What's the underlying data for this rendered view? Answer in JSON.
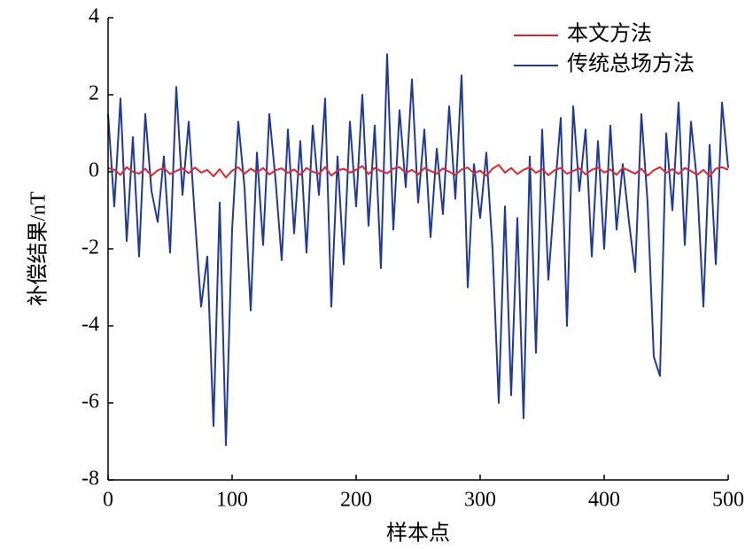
{
  "chart_data": {
    "type": "line",
    "xlabel": "样本点",
    "ylabel": "补偿结果/nT",
    "x": [
      0,
      5,
      10,
      15,
      20,
      25,
      30,
      35,
      40,
      45,
      50,
      55,
      60,
      65,
      70,
      75,
      80,
      85,
      90,
      95,
      100,
      105,
      110,
      115,
      120,
      125,
      130,
      135,
      140,
      145,
      150,
      155,
      160,
      165,
      170,
      175,
      180,
      185,
      190,
      195,
      200,
      205,
      210,
      215,
      220,
      225,
      230,
      235,
      240,
      245,
      250,
      255,
      260,
      265,
      270,
      275,
      280,
      285,
      290,
      295,
      300,
      305,
      310,
      315,
      320,
      325,
      330,
      335,
      340,
      345,
      350,
      355,
      360,
      365,
      370,
      375,
      380,
      385,
      390,
      395,
      400,
      405,
      410,
      415,
      420,
      425,
      430,
      435,
      440,
      445,
      450,
      455,
      460,
      465,
      470,
      475,
      480,
      485,
      490,
      495,
      500
    ],
    "series": [
      {
        "name": "本文方法",
        "color": "#e0262b",
        "values": [
          0.1,
          0.05,
          -0.08,
          0.12,
          0.0,
          -0.05,
          0.08,
          -0.1,
          0.04,
          0.1,
          -0.06,
          0.02,
          0.09,
          -0.04,
          0.11,
          -0.02,
          0.05,
          -0.12,
          0.07,
          -0.15,
          0.03,
          0.12,
          -0.05,
          0.08,
          -0.02,
          0.1,
          -0.07,
          0.04,
          0.09,
          -0.03,
          0.06,
          -0.08,
          0.1,
          0.0,
          -0.05,
          0.12,
          -0.1,
          0.03,
          0.08,
          -0.02,
          0.05,
          0.15,
          -0.06,
          0.1,
          0.02,
          -0.04,
          0.08,
          0.12,
          -0.03,
          0.05,
          -0.07,
          0.1,
          0.02,
          -0.05,
          0.09,
          0.0,
          -0.08,
          0.06,
          0.11,
          -0.04,
          0.03,
          -0.1,
          0.08,
          0.18,
          -0.02,
          0.1,
          -0.06,
          0.05,
          0.12,
          -0.03,
          0.07,
          -0.09,
          0.04,
          0.1,
          -0.05,
          0.02,
          0.09,
          -0.07,
          0.05,
          0.11,
          -0.02,
          0.06,
          -0.08,
          0.1,
          0.03,
          -0.05,
          0.08,
          -0.1,
          0.04,
          0.12,
          -0.03,
          0.07,
          -0.06,
          0.1,
          0.02,
          -0.08,
          0.05,
          -0.12,
          0.08,
          0.12,
          0.05
        ]
      },
      {
        "name": "传统总场方法",
        "color": "#1f3a9a",
        "values": [
          1.5,
          -0.9,
          1.9,
          -1.8,
          0.9,
          -2.2,
          1.5,
          -0.5,
          -1.3,
          0.4,
          -2.1,
          2.2,
          -0.6,
          1.3,
          -1.2,
          -3.5,
          -2.2,
          -6.6,
          -0.8,
          -7.1,
          -1.5,
          1.3,
          -0.4,
          -3.6,
          0.5,
          -1.9,
          1.5,
          -0.2,
          -2.3,
          1.1,
          -1.6,
          0.8,
          -2.1,
          1.2,
          -0.6,
          1.9,
          -3.5,
          0.4,
          -2.4,
          1.3,
          -0.9,
          2.0,
          -1.4,
          1.2,
          -2.5,
          3.05,
          -1.5,
          1.6,
          -0.4,
          2.4,
          -0.8,
          1.1,
          -1.7,
          0.6,
          -1.1,
          1.7,
          -0.7,
          2.5,
          -3.0,
          0.2,
          -1.2,
          0.5,
          -2.0,
          -6.0,
          -0.9,
          -5.8,
          -1.2,
          -6.4,
          0.4,
          -4.7,
          1.1,
          -2.8,
          -0.6,
          1.4,
          -4.0,
          1.7,
          -0.5,
          1.1,
          -2.2,
          0.8,
          -2.0,
          1.2,
          -1.5,
          0.2,
          -1.3,
          -2.6,
          1.5,
          -0.8,
          -4.8,
          -5.3,
          1.0,
          -1.0,
          1.8,
          -1.9,
          1.3,
          -0.3,
          -3.5,
          0.7,
          -2.4,
          1.8,
          0.1
        ]
      }
    ],
    "xlim": [
      0,
      500
    ],
    "xticks": [
      0,
      100,
      200,
      300,
      400,
      500
    ],
    "ylim": [
      -8,
      4
    ],
    "yticks": [
      -8,
      -6,
      -4,
      -2,
      0,
      2,
      4
    ],
    "legend": "upper right"
  }
}
